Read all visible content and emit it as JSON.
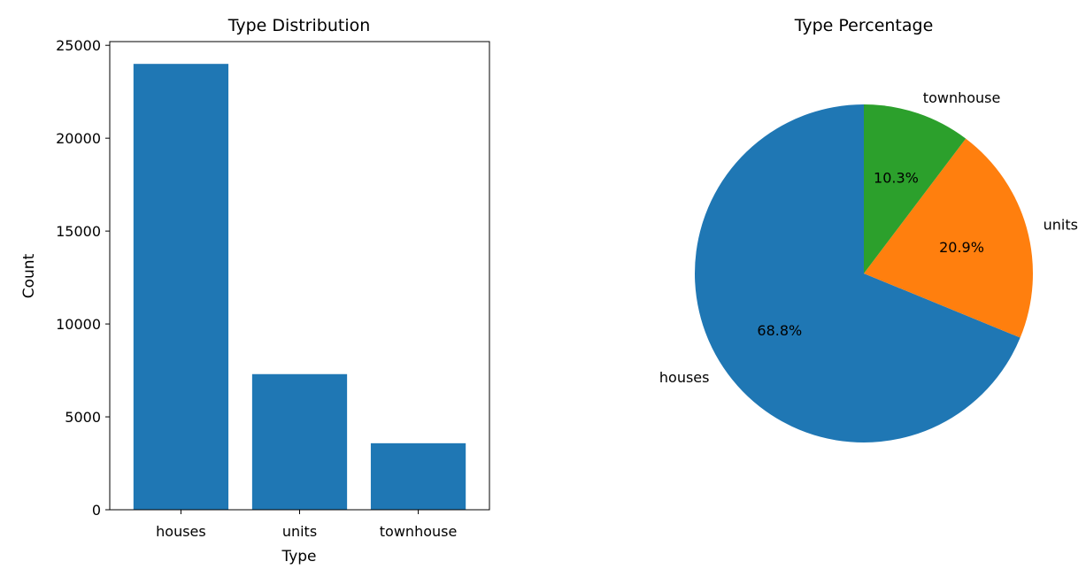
{
  "colors": {
    "houses": "#1f77b4",
    "units": "#ff7f0e",
    "townhouse": "#2ca02c",
    "axis": "#000000",
    "background": "#ffffff"
  },
  "chart_data": [
    {
      "type": "bar",
      "title": "Type Distribution",
      "xlabel": "Type",
      "ylabel": "Count",
      "categories": [
        "houses",
        "units",
        "townhouse"
      ],
      "values": [
        24000,
        7300,
        3580
      ],
      "ylim": [
        0,
        25200
      ],
      "yticks": [
        0,
        5000,
        10000,
        15000,
        20000,
        25000
      ],
      "ytick_labels": [
        "0",
        "5000",
        "10000",
        "15000",
        "20000",
        "25000"
      ],
      "grid": false,
      "color": "#1f77b4"
    },
    {
      "type": "pie",
      "title": "Type Percentage",
      "labels": [
        "houses",
        "units",
        "townhouse"
      ],
      "values": [
        68.8,
        20.9,
        10.3
      ],
      "percent_labels": [
        "68.8%",
        "20.9%",
        "10.3%"
      ],
      "colors": [
        "#1f77b4",
        "#ff7f0e",
        "#2ca02c"
      ],
      "start_angle": "top",
      "direction": "counterclockwise"
    }
  ]
}
